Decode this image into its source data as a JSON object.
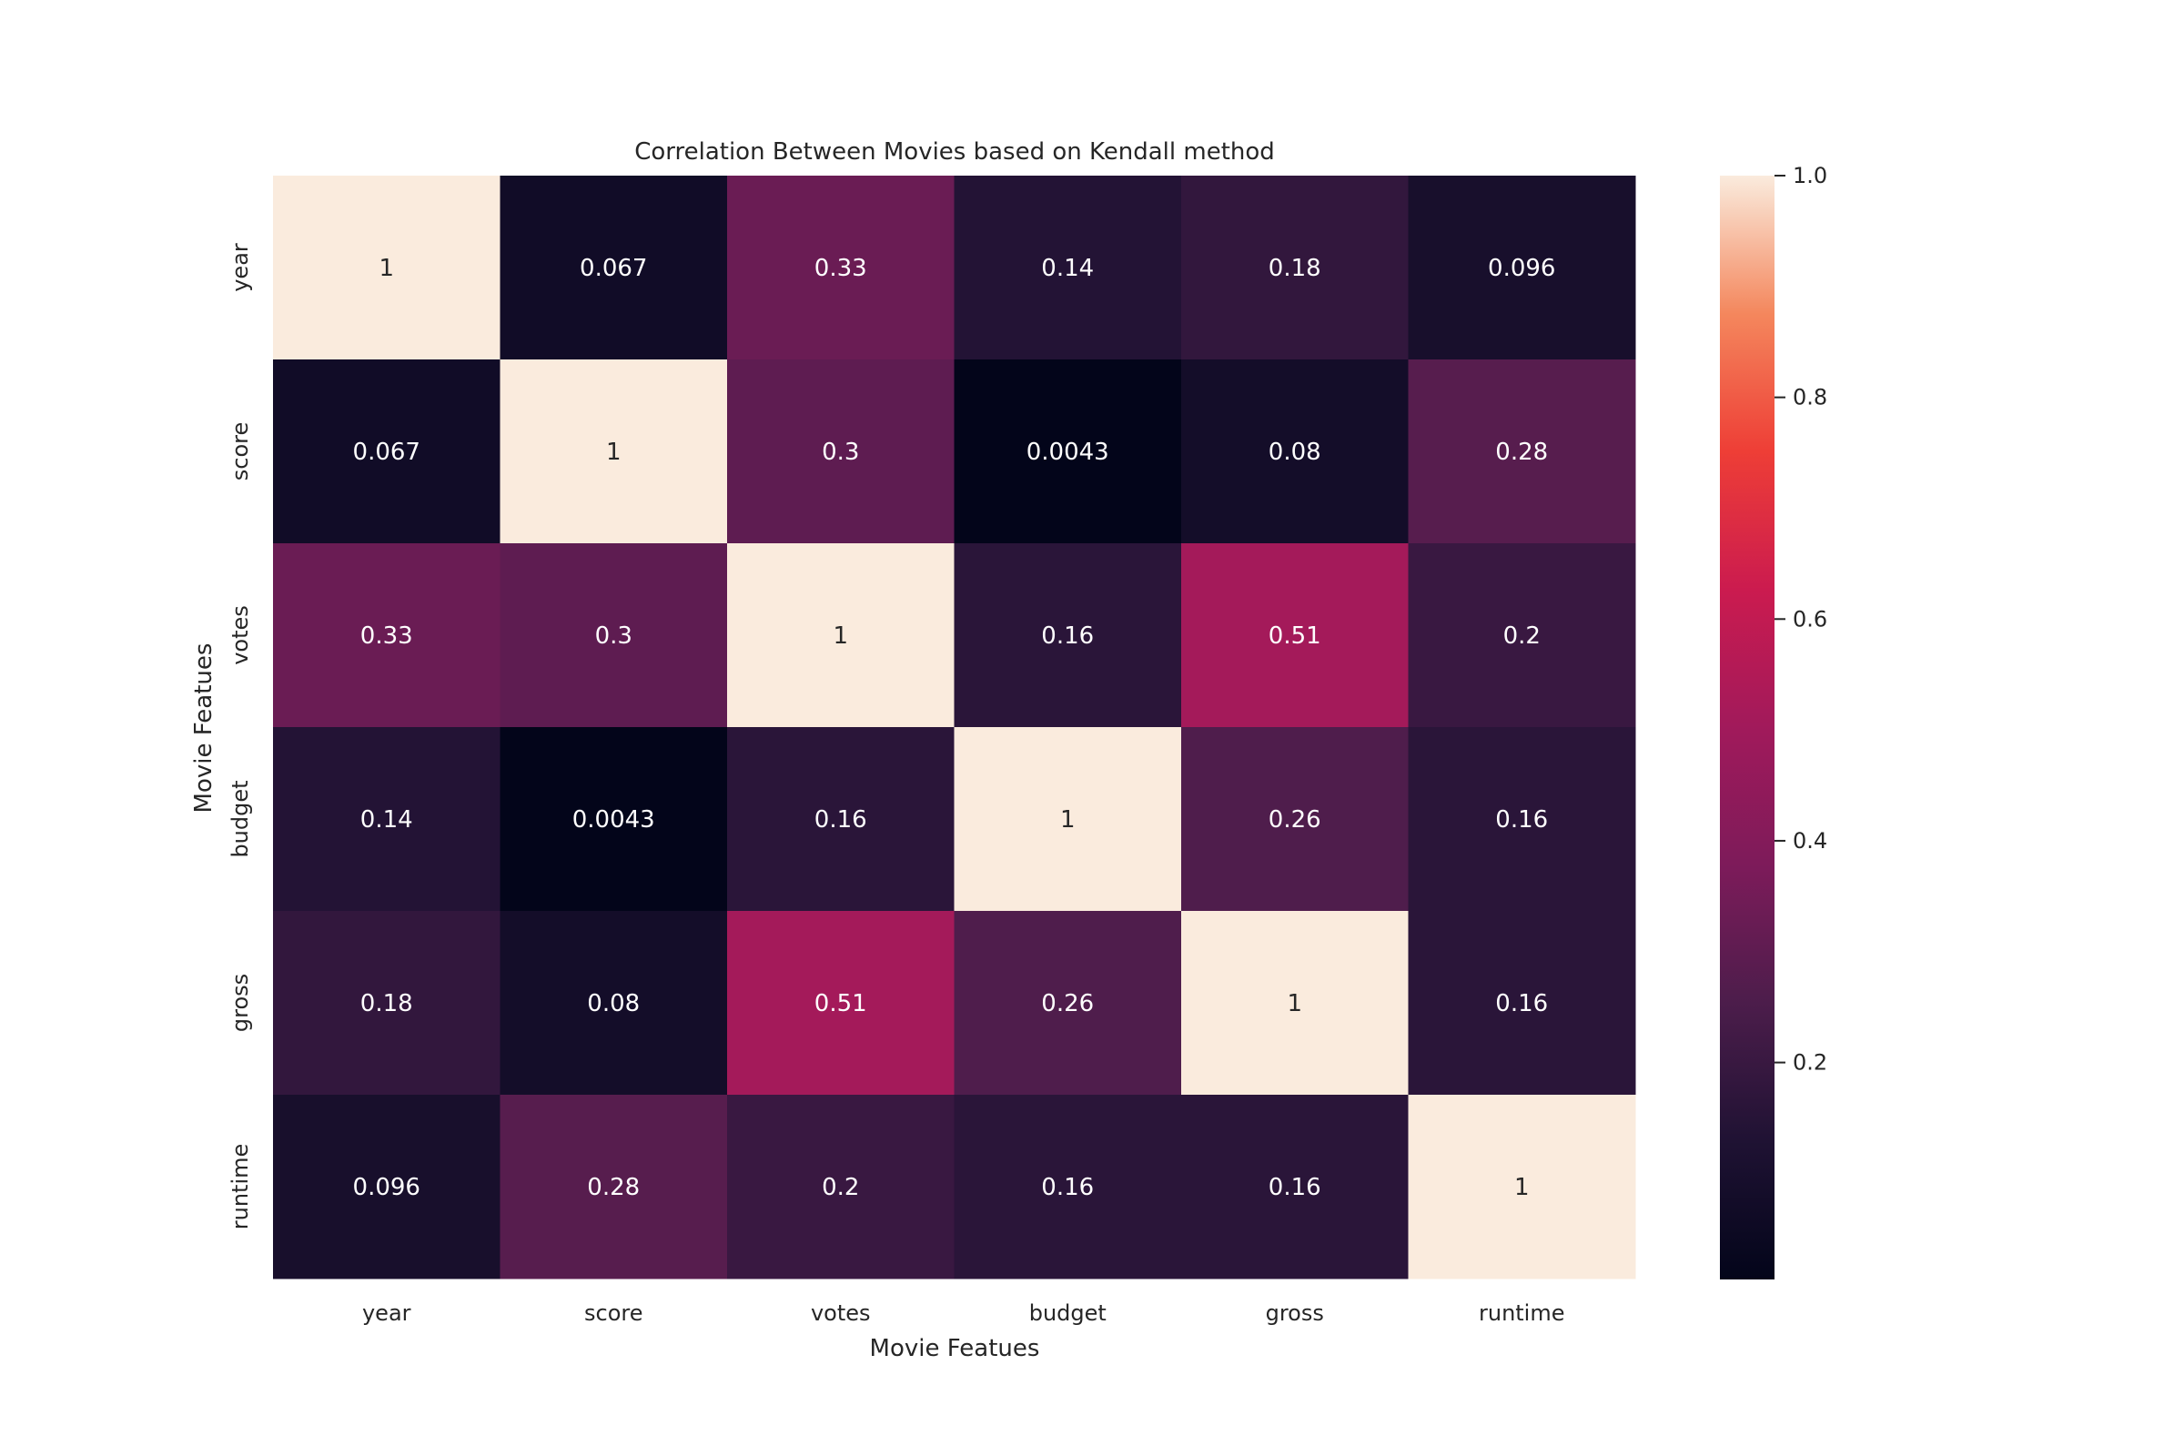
{
  "chart_data": {
    "type": "heatmap",
    "title": "Correlation Between Movies based on Kendall method",
    "xlabel": "Movie Featues",
    "ylabel": "Movie Featues",
    "x_categories": [
      "year",
      "score",
      "votes",
      "budget",
      "gross",
      "runtime"
    ],
    "y_categories": [
      "year",
      "score",
      "votes",
      "budget",
      "gross",
      "runtime"
    ],
    "values": [
      [
        1,
        0.067,
        0.33,
        0.14,
        0.18,
        0.096
      ],
      [
        0.067,
        1,
        0.3,
        0.0043,
        0.08,
        0.28
      ],
      [
        0.33,
        0.3,
        1,
        0.16,
        0.51,
        0.2
      ],
      [
        0.14,
        0.0043,
        0.16,
        1,
        0.26,
        0.16
      ],
      [
        0.18,
        0.08,
        0.51,
        0.26,
        1,
        0.16
      ],
      [
        0.096,
        0.28,
        0.2,
        0.16,
        0.16,
        1
      ]
    ],
    "annotations": [
      [
        "1",
        "0.067",
        "0.33",
        "0.14",
        "0.18",
        "0.096"
      ],
      [
        "0.067",
        "1",
        "0.3",
        "0.0043",
        "0.08",
        "0.28"
      ],
      [
        "0.33",
        "0.3",
        "1",
        "0.16",
        "0.51",
        "0.2"
      ],
      [
        "0.14",
        "0.0043",
        "0.16",
        "1",
        "0.26",
        "0.16"
      ],
      [
        "0.18",
        "0.08",
        "0.51",
        "0.26",
        "1",
        "0.16"
      ],
      [
        "0.096",
        "0.28",
        "0.2",
        "0.16",
        "0.16",
        "1"
      ]
    ],
    "colormap": "rocket",
    "colorbar": {
      "range": [
        0.0043,
        1.0
      ],
      "ticks": [
        0.2,
        0.4,
        0.6,
        0.8,
        1.0
      ],
      "tick_labels": [
        "0.2",
        "0.4",
        "0.6",
        "0.8",
        "1.0"
      ]
    },
    "grid": false,
    "legend": "colorbar-right"
  }
}
